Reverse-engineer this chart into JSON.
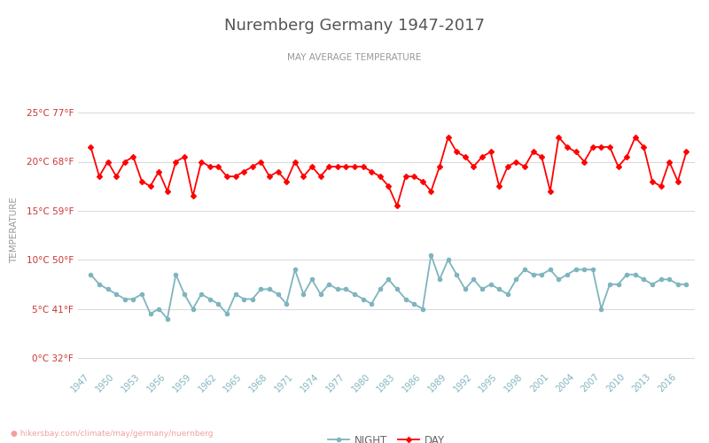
{
  "title": "Nuremberg Germany 1947-2017",
  "subtitle": "MAY AVERAGE TEMPERATURE",
  "ylabel": "TEMPERATURE",
  "watermark": "hikersbay.com/climate/may/germany/nuernberg",
  "years": [
    1947,
    1948,
    1949,
    1950,
    1951,
    1952,
    1953,
    1954,
    1955,
    1956,
    1957,
    1958,
    1959,
    1960,
    1961,
    1962,
    1963,
    1964,
    1965,
    1966,
    1967,
    1968,
    1969,
    1970,
    1971,
    1972,
    1973,
    1974,
    1975,
    1976,
    1977,
    1978,
    1979,
    1980,
    1981,
    1982,
    1983,
    1984,
    1985,
    1986,
    1987,
    1988,
    1989,
    1990,
    1991,
    1992,
    1993,
    1994,
    1995,
    1996,
    1997,
    1998,
    1999,
    2000,
    2001,
    2002,
    2003,
    2004,
    2005,
    2006,
    2007,
    2008,
    2009,
    2010,
    2011,
    2012,
    2013,
    2014,
    2015,
    2016,
    2017
  ],
  "day_temps": [
    21.5,
    18.5,
    20.0,
    18.5,
    20.0,
    20.5,
    18.0,
    17.5,
    19.0,
    17.0,
    20.0,
    20.5,
    16.5,
    20.0,
    19.5,
    19.5,
    18.5,
    18.5,
    19.0,
    19.5,
    20.0,
    18.5,
    19.0,
    18.0,
    20.0,
    18.5,
    19.5,
    18.5,
    19.5,
    19.5,
    19.5,
    19.5,
    19.5,
    19.0,
    18.5,
    17.5,
    15.5,
    18.5,
    18.5,
    18.0,
    17.0,
    19.5,
    22.5,
    21.0,
    20.5,
    19.5,
    20.5,
    21.0,
    17.5,
    19.5,
    20.0,
    19.5,
    21.0,
    20.5,
    17.0,
    22.5,
    21.5,
    21.0,
    20.0,
    21.5,
    21.5,
    21.5,
    19.5,
    20.5,
    22.5,
    21.5,
    18.0,
    17.5,
    20.0,
    18.0,
    21.0
  ],
  "night_temps": [
    8.5,
    7.5,
    7.0,
    6.5,
    6.0,
    6.0,
    6.5,
    4.5,
    5.0,
    4.0,
    8.5,
    6.5,
    5.0,
    6.5,
    6.0,
    5.5,
    4.5,
    6.5,
    6.0,
    6.0,
    7.0,
    7.0,
    6.5,
    5.5,
    9.0,
    6.5,
    8.0,
    6.5,
    7.5,
    7.0,
    7.0,
    6.5,
    6.0,
    5.5,
    7.0,
    8.0,
    7.0,
    6.0,
    5.5,
    5.0,
    10.5,
    8.0,
    10.0,
    8.5,
    7.0,
    8.0,
    7.0,
    7.5,
    7.0,
    6.5,
    8.0,
    9.0,
    8.5,
    8.5,
    9.0,
    8.0,
    8.5,
    9.0,
    9.0,
    9.0,
    5.0,
    7.5,
    7.5,
    8.5,
    8.5,
    8.0,
    7.5,
    8.0,
    8.0,
    7.5,
    7.5
  ],
  "day_color": "#ff0000",
  "night_color": "#7eb5be",
  "day_marker": "D",
  "night_marker": "o",
  "marker_size": 3,
  "line_width": 1.3,
  "ylim": [
    -1,
    27
  ],
  "yticks_celsius": [
    0,
    5,
    10,
    15,
    20,
    25
  ],
  "yticks_fahrenheit": [
    32,
    41,
    50,
    59,
    68,
    77
  ],
  "xtick_years": [
    1947,
    1950,
    1953,
    1956,
    1959,
    1962,
    1965,
    1968,
    1971,
    1974,
    1977,
    1980,
    1983,
    1986,
    1989,
    1992,
    1995,
    1998,
    2001,
    2004,
    2007,
    2010,
    2013,
    2016
  ],
  "bg_color": "#ffffff",
  "grid_color": "#d8d8d8",
  "title_color": "#555555",
  "subtitle_color": "#999999",
  "ylabel_color": "#999999",
  "tick_color": "#cc3333",
  "xtick_color": "#7eb5be",
  "legend_color": "#666666",
  "watermark_color": "#f0a0a0"
}
